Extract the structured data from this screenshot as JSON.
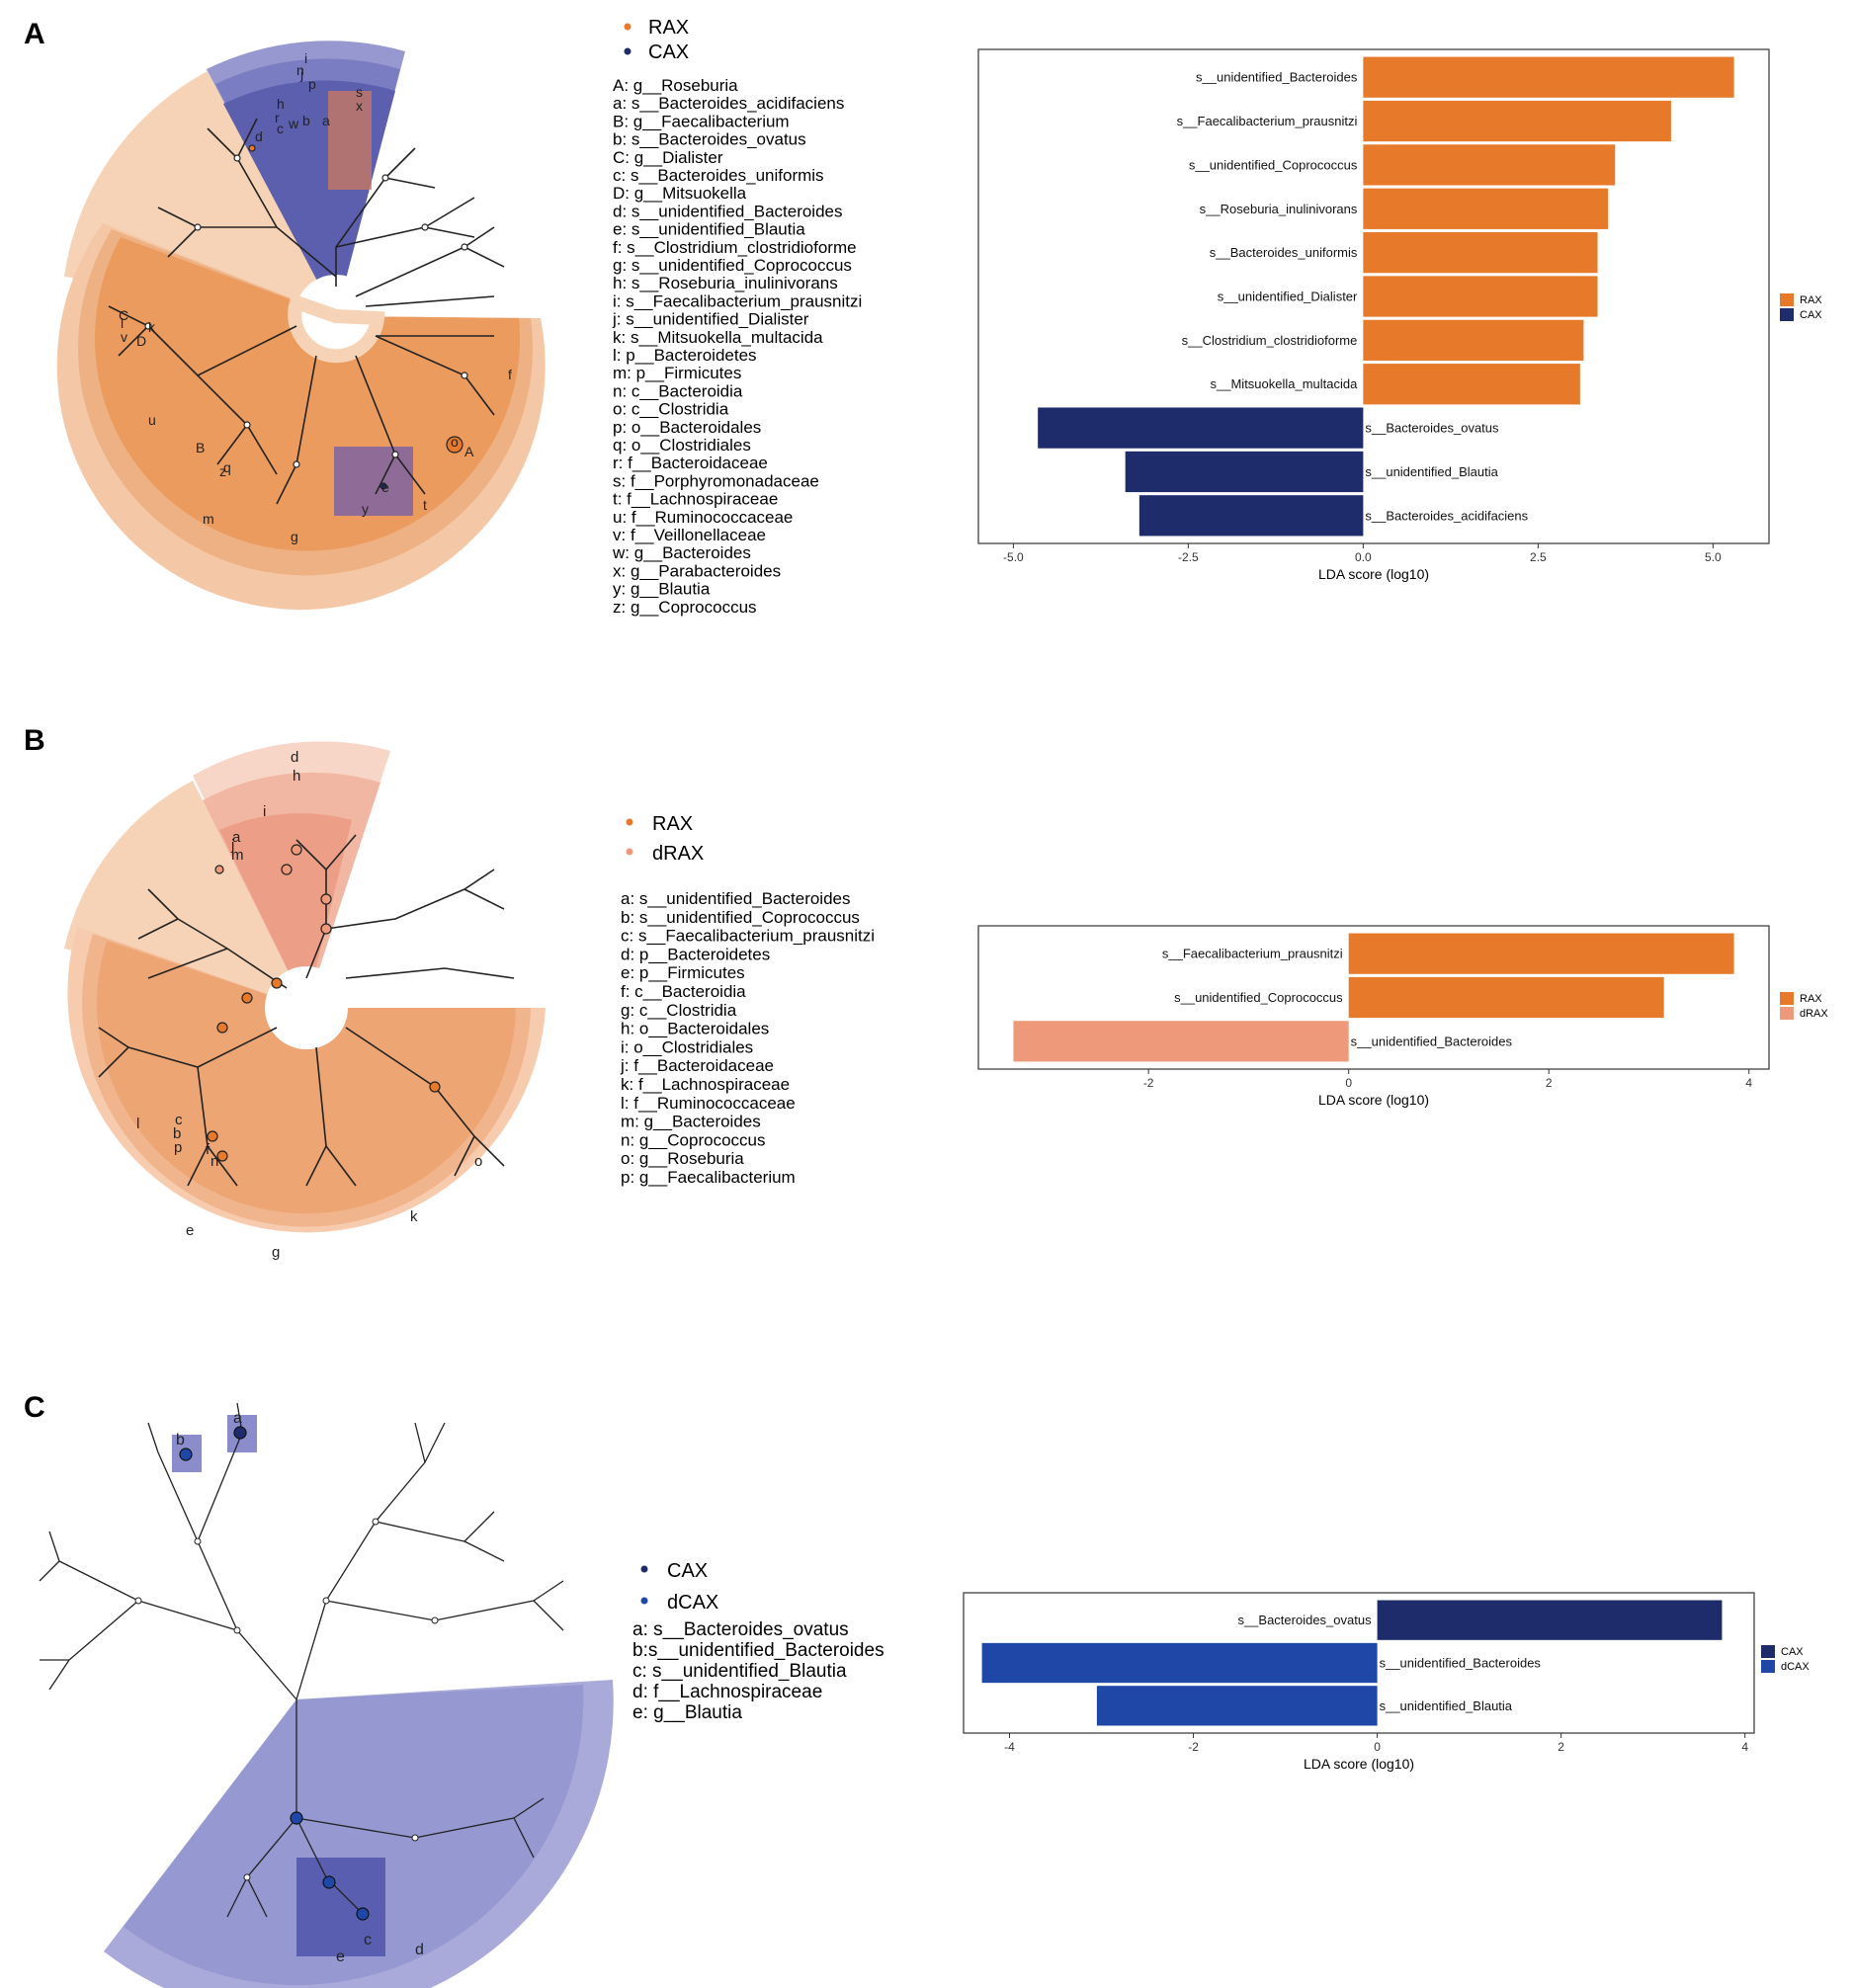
{
  "colors": {
    "RAX": "#E67A2A",
    "CAX": "#1E2C6B",
    "dRAX": "#EE9A7A",
    "dCAX": "#1F47A8",
    "rax_light": "#F6D3B6",
    "rax_mid": "#EFA874",
    "cax_shade": "#7B7FC4",
    "cax_light": "#AEB0DC"
  },
  "panels": [
    {
      "letter": "A",
      "legend": [
        {
          "name": "RAX",
          "color": "#E67A2A"
        },
        {
          "name": "CAX",
          "color": "#1E2C6B"
        }
      ],
      "cladogram_labels": [
        "A",
        "a",
        "B",
        "b",
        "C",
        "c",
        "D",
        "d",
        "e",
        "f",
        "g",
        "h",
        "i",
        "j",
        "k",
        "l",
        "m",
        "n",
        "o",
        "p",
        "q",
        "r",
        "s",
        "t",
        "u",
        "v",
        "w",
        "x",
        "y",
        "z"
      ],
      "key": [
        "A: g__Roseburia",
        "a: s__Bacteroides_acidifaciens",
        "B: g__Faecalibacterium",
        "b: s__Bacteroides_ovatus",
        "C: g__Dialister",
        "c: s__Bacteroides_uniformis",
        "D: g__Mitsuokella",
        "d: s__unidentified_Bacteroides",
        "e: s__unidentified_Blautia",
        "f: s__Clostridium_clostridioforme",
        "g: s__unidentified_Coprococcus",
        "h: s__Roseburia_inulinivorans",
        "i: s__Faecalibacterium_prausnitzi",
        "j: s__unidentified_Dialister",
        "k: s__Mitsuokella_multacida",
        "l: p__Bacteroidetes",
        "m: p__Firmicutes",
        "n: c__Bacteroidia",
        "o: c__Clostridia",
        "p: o__Bacteroidales",
        "q: o__Clostridiales",
        "r: f__Bacteroidaceae",
        "s: f__Porphyromonadaceae",
        "t: f__Lachnospiraceae",
        "u: f__Ruminococcaceae",
        "v: f__Veillonellaceae",
        "w: g__Bacteroides",
        "x: g__Parabacteroides",
        "y: g__Blautia",
        "z: g__Coprococcus"
      ]
    },
    {
      "letter": "B",
      "legend": [
        {
          "name": "RAX",
          "color": "#E67A2A"
        },
        {
          "name": "dRAX",
          "color": "#EE9A7A"
        }
      ],
      "cladogram_labels": [
        "a",
        "b",
        "c",
        "d",
        "e",
        "f",
        "g",
        "h",
        "i",
        "j",
        "k",
        "l",
        "m",
        "n",
        "o",
        "p"
      ],
      "key": [
        "a: s__unidentified_Bacteroides",
        "b: s__unidentified_Coprococcus",
        "c: s__Faecalibacterium_prausnitzi",
        "d: p__Bacteroidetes",
        "e: p__Firmicutes",
        "f: c__Bacteroidia",
        "g: c__Clostridia",
        "h: o__Bacteroidales",
        "i: o__Clostridiales",
        "j: f__Bacteroidaceae",
        "k: f__Lachnospiraceae",
        "l: f__Ruminococcaceae",
        "m: g__Bacteroides",
        "n: g__Coprococcus",
        "o: g__Roseburia",
        "p: g__Faecalibacterium"
      ]
    },
    {
      "letter": "C",
      "legend": [
        {
          "name": "CAX",
          "color": "#1E2C6B"
        },
        {
          "name": "dCAX",
          "color": "#1F47A8"
        }
      ],
      "cladogram_labels": [
        "a",
        "b",
        "c",
        "d",
        "e"
      ],
      "key": [
        "a: s__Bacteroides_ovatus",
        "b:s__unidentified_Bacteroides",
        "c: s__unidentified_Blautia",
        "d: f__Lachnospiraceae",
        "e: g__Blautia"
      ]
    }
  ],
  "chart_data": [
    {
      "type": "bar",
      "orientation": "horizontal",
      "panel": "A",
      "categories": [
        "s__unidentified_Bacteroides",
        "s__Faecalibacterium_prausnitzi",
        "s__unidentified_Coprococcus",
        "s__Roseburia_inulinivorans",
        "s__Bacteroides_uniformis",
        "s__unidentified_Dialister",
        "s__Clostridium_clostridioforme",
        "s__Mitsuokella_multacida",
        "s__Bacteroides_ovatus",
        "s__unidentified_Blautia",
        "s__Bacteroides_acidifaciens"
      ],
      "values": [
        5.3,
        4.4,
        3.6,
        3.5,
        3.35,
        3.35,
        3.15,
        3.1,
        -4.65,
        -3.4,
        -3.2
      ],
      "groups": [
        "RAX",
        "RAX",
        "RAX",
        "RAX",
        "RAX",
        "RAX",
        "RAX",
        "RAX",
        "CAX",
        "CAX",
        "CAX"
      ],
      "xlabel": "LDA score (log10)",
      "xlim": [
        -5.5,
        5.8
      ],
      "ticks": [
        -5.0,
        -2.5,
        0.0,
        2.5,
        5.0
      ],
      "tick_labels": [
        "-5.0",
        "-2.5",
        "0.0",
        "2.5",
        "5.0"
      ],
      "legend": [
        {
          "name": "RAX",
          "color": "#E67A2A"
        },
        {
          "name": "CAX",
          "color": "#1E2C6B"
        }
      ]
    },
    {
      "type": "bar",
      "orientation": "horizontal",
      "panel": "B",
      "categories": [
        "s__Faecalibacterium_prausnitzi",
        "s__unidentified_Coprococcus",
        "s__unidentified_Bacteroides"
      ],
      "values": [
        3.85,
        3.15,
        -3.35
      ],
      "groups": [
        "RAX",
        "RAX",
        "dRAX"
      ],
      "xlabel": "LDA score (log10)",
      "xlim": [
        -3.7,
        4.2
      ],
      "ticks": [
        -2,
        0,
        2,
        4
      ],
      "tick_labels": [
        "-2",
        "0",
        "2",
        "4"
      ],
      "legend": [
        {
          "name": "RAX",
          "color": "#E67A2A"
        },
        {
          "name": "dRAX",
          "color": "#EE9A7A"
        }
      ]
    },
    {
      "type": "bar",
      "orientation": "horizontal",
      "panel": "C",
      "categories": [
        "s__Bacteroides_ovatus",
        "s__unidentified_Bacteroides",
        "s__unidentified_Blautia"
      ],
      "values": [
        3.75,
        -4.3,
        -3.05
      ],
      "groups": [
        "CAX",
        "dCAX",
        "dCAX"
      ],
      "xlabel": "LDA score (log10)",
      "xlim": [
        -4.5,
        4.1
      ],
      "ticks": [
        -4,
        -2,
        0,
        2,
        4
      ],
      "tick_labels": [
        "-4",
        "-2",
        "0",
        "2",
        "4"
      ],
      "legend": [
        {
          "name": "CAX",
          "color": "#1E2C6B"
        },
        {
          "name": "dCAX",
          "color": "#1F47A8"
        }
      ]
    }
  ]
}
